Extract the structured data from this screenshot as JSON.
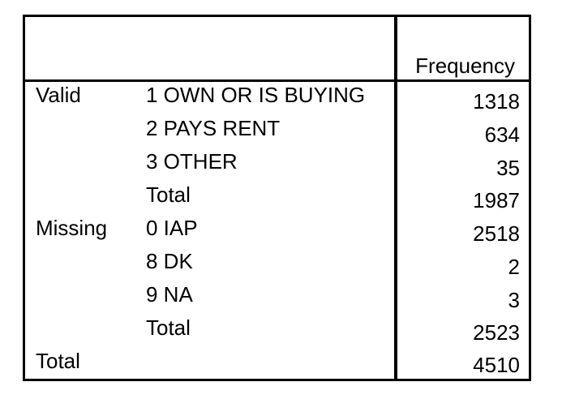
{
  "table": {
    "column_header": "Frequency",
    "rows": [
      {
        "group": "Valid",
        "label": "1  OWN OR IS BUYING",
        "value": "1318"
      },
      {
        "group": "",
        "label": "2  PAYS RENT",
        "value": "634"
      },
      {
        "group": "",
        "label": "3  OTHER",
        "value": "35"
      },
      {
        "group": "",
        "label": "Total",
        "value": "1987"
      },
      {
        "group": "Missing",
        "label": "0  IAP",
        "value": "2518"
      },
      {
        "group": "",
        "label": "8  DK",
        "value": "2"
      },
      {
        "group": "",
        "label": "9  NA",
        "value": "3"
      },
      {
        "group": "",
        "label": "Total",
        "value": "2523"
      },
      {
        "group": "Total",
        "label": "",
        "value": "4510"
      }
    ]
  }
}
